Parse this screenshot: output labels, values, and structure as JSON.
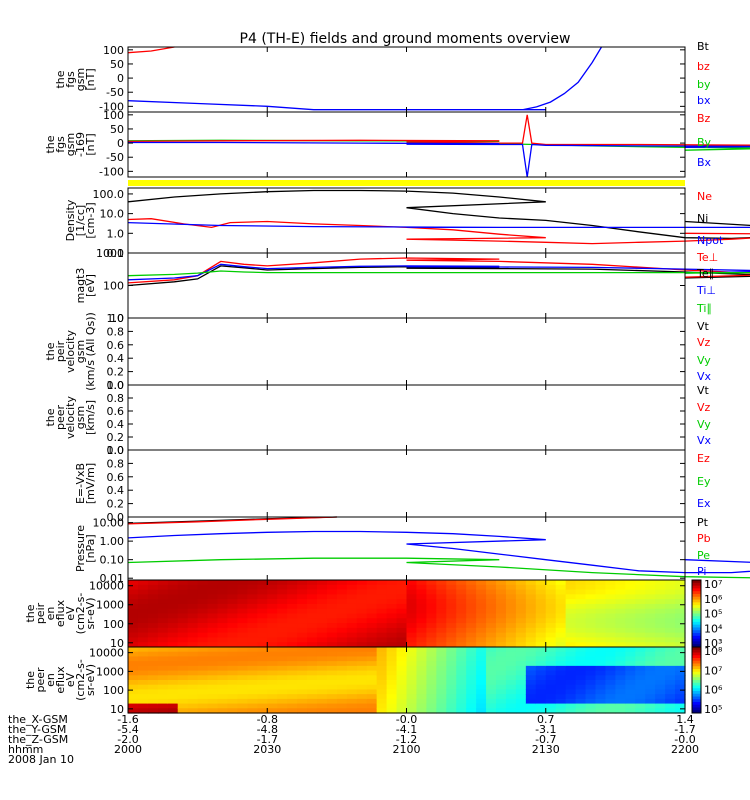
{
  "title": "P4 (TH-E) fields and ground moments overview",
  "footer": {
    "rows": [
      {
        "label": "the_X-GSM",
        "values": [
          "-1.6",
          "-0.8",
          "-0.0",
          "0.7",
          "1.4"
        ]
      },
      {
        "label": "the_Y-GSM",
        "values": [
          "-5.4",
          "-4.8",
          "-4.1",
          "-3.1",
          "-1.7"
        ]
      },
      {
        "label": "the_Z-GSM",
        "values": [
          "-2.0",
          "-1.7",
          "-1.2",
          "-0.7",
          "-0.0"
        ]
      },
      {
        "label": "hhmm",
        "values": [
          "2000",
          "2030",
          "2100",
          "2130",
          "2200"
        ]
      }
    ],
    "date": "2008 Jan 10"
  },
  "colors": {
    "black": "#000000",
    "red": "#ff0000",
    "green": "#00cc00",
    "blue": "#0000ff",
    "yellow": "#ffff00"
  },
  "chart_data": [
    {
      "id": "fgs",
      "type": "line",
      "ylabel_lines": [
        "the",
        "fgs",
        "gsm",
        "[nT]"
      ],
      "ylim": [
        -120,
        110
      ],
      "yticks": [
        {
          "v": 100,
          "t": "100"
        },
        {
          "v": 50,
          "t": "50"
        },
        {
          "v": 0,
          "t": "0"
        },
        {
          "v": -50,
          "t": "-50"
        },
        {
          "v": -100,
          "t": "-100"
        }
      ],
      "legend": [
        {
          "t": "Bt",
          "c": "black"
        },
        {
          "t": "bz",
          "c": "red"
        },
        {
          "t": "by",
          "c": "green"
        },
        {
          "t": "bx",
          "c": "blue"
        }
      ],
      "series": [
        {
          "c": "red",
          "x": [
            2000,
            2005,
            2010
          ],
          "y": [
            90,
            96,
            110
          ]
        },
        {
          "c": "blue",
          "x": [
            2000,
            2015,
            2030,
            2040,
            2060,
            2090,
            2120,
            2125,
            2128,
            2131,
            2134,
            2137,
            2140,
            2142
          ],
          "y": [
            -80,
            -90,
            -100,
            -112,
            -112,
            -112,
            -112,
            -112,
            -102,
            -85,
            -55,
            -15,
            55,
            110
          ]
        }
      ]
    },
    {
      "id": "fgs_169",
      "type": "line",
      "ylabel_lines": [
        "the",
        "fgs",
        "gsm",
        "-169",
        "[nT]"
      ],
      "ylim": [
        -120,
        110
      ],
      "yticks": [
        {
          "v": 100,
          "t": "100"
        },
        {
          "v": 50,
          "t": "50"
        },
        {
          "v": 0,
          "t": "0"
        },
        {
          "v": -50,
          "t": "-50"
        },
        {
          "v": -100,
          "t": "-100"
        }
      ],
      "legend": [
        {
          "t": "Bz",
          "c": "red"
        },
        {
          "t": "By",
          "c": "green"
        },
        {
          "t": "Bx",
          "c": "blue"
        }
      ],
      "series": [
        {
          "c": "green",
          "x": [
            2000,
            2020,
            2050,
            2080,
            2100,
            2120,
            2140,
            2160,
            2180,
            2200
          ],
          "y": [
            8,
            10,
            8,
            6,
            2,
            -2,
            -10,
            -15,
            -18,
            -25
          ]
        },
        {
          "c": "red",
          "x": [
            2000,
            2020,
            2050,
            2080,
            2100,
            2120,
            2125,
            2126,
            2127,
            2130,
            2150,
            2180,
            2200
          ],
          "y": [
            6,
            8,
            10,
            8,
            4,
            0,
            0,
            100,
            0,
            -5,
            -5,
            -8,
            -10
          ]
        },
        {
          "c": "blue",
          "x": [
            2000,
            2020,
            2050,
            2080,
            2100,
            2120,
            2125,
            2126,
            2127,
            2130,
            2150,
            2180,
            2200
          ],
          "y": [
            2,
            2,
            0,
            -2,
            -4,
            -5,
            -5,
            -120,
            -5,
            -8,
            -10,
            -12,
            -15
          ]
        }
      ]
    },
    {
      "id": "density",
      "type": "line",
      "log": true,
      "ylabel_lines": [
        "Density",
        "[1/cc]",
        "[cm-3]"
      ],
      "ylim": [
        0.1,
        200
      ],
      "yticks": [
        {
          "v": 100,
          "t": "100.0"
        },
        {
          "v": 10,
          "t": "10.0"
        },
        {
          "v": 1,
          "t": "1.0"
        },
        {
          "v": 0.1,
          "t": "0.1"
        }
      ],
      "legend": [
        {
          "t": "Ne",
          "c": "red"
        },
        {
          "t": "Ni",
          "c": "black"
        },
        {
          "t": "Npot",
          "c": "blue"
        }
      ],
      "series": [
        {
          "c": "black",
          "x": [
            2000,
            2010,
            2020,
            2030,
            2040,
            2050,
            2060,
            2070,
            2080,
            2090,
            2100,
            2110,
            2120,
            2130,
            2140,
            2150,
            2160,
            2170,
            2180,
            2190,
            2200
          ],
          "y": [
            40,
            70,
            100,
            130,
            150,
            150,
            140,
            110,
            70,
            40,
            20,
            10,
            6,
            4.5,
            2.5,
            1.2,
            0.6,
            0.55,
            0.7,
            1.5,
            4
          ]
        },
        {
          "c": "red",
          "x": [
            2000,
            2005,
            2012,
            2018,
            2022,
            2030,
            2040,
            2050,
            2060,
            2070,
            2080,
            2090,
            2100,
            2110,
            2120,
            2130,
            2140,
            2150,
            2160,
            2170,
            2180,
            2190,
            2200
          ],
          "y": [
            5,
            5.5,
            3,
            2,
            3.5,
            4,
            3,
            2.5,
            2,
            1.5,
            0.9,
            0.6,
            0.5,
            0.45,
            0.4,
            0.35,
            0.3,
            0.35,
            0.4,
            0.5,
            0.7,
            0.9,
            1
          ]
        },
        {
          "c": "blue",
          "x": [
            2000,
            2020,
            2040,
            2060,
            2080,
            2100,
            2120,
            2140,
            2160,
            2180,
            2200
          ],
          "y": [
            3.5,
            2.5,
            2.2,
            2.1,
            2.0,
            2.0,
            2.0,
            2.0,
            2.0,
            2.0,
            2.0
          ]
        }
      ]
    },
    {
      "id": "temp",
      "type": "line",
      "log": true,
      "ylabel_lines": [
        "magt3",
        "[eV]"
      ],
      "ylim": [
        10,
        1000
      ],
      "yticks": [
        {
          "v": 1000,
          "t": "1000"
        },
        {
          "v": 100,
          "t": "100"
        },
        {
          "v": 10,
          "t": "10"
        }
      ],
      "legend": [
        {
          "t": "Te⊥",
          "c": "red"
        },
        {
          "t": "Te∥",
          "c": "black"
        },
        {
          "t": "Ti⊥",
          "c": "blue"
        },
        {
          "t": "Ti∥",
          "c": "green"
        }
      ],
      "series": [
        {
          "c": "black",
          "x": [
            2000,
            2010,
            2015,
            2020,
            2025,
            2030,
            2040,
            2050,
            2060,
            2080,
            2100,
            2120,
            2140,
            2160,
            2180,
            2200
          ],
          "y": [
            100,
            130,
            160,
            400,
            350,
            300,
            330,
            360,
            380,
            360,
            340,
            330,
            320,
            260,
            200,
            170
          ]
        },
        {
          "c": "red",
          "x": [
            2000,
            2010,
            2015,
            2020,
            2025,
            2030,
            2040,
            2050,
            2060,
            2080,
            2100,
            2120,
            2140,
            2160,
            2180,
            2200
          ],
          "y": [
            120,
            150,
            200,
            550,
            450,
            400,
            500,
            650,
            700,
            650,
            600,
            550,
            450,
            300,
            220,
            180
          ]
        },
        {
          "c": "blue",
          "x": [
            2000,
            2010,
            2015,
            2020,
            2025,
            2030,
            2040,
            2050,
            2060,
            2080,
            2100,
            2120,
            2140,
            2160,
            2180,
            2200
          ],
          "y": [
            150,
            170,
            200,
            450,
            380,
            330,
            360,
            390,
            400,
            390,
            380,
            370,
            360,
            320,
            280,
            240
          ]
        },
        {
          "c": "green",
          "x": [
            2000,
            2010,
            2015,
            2020,
            2025,
            2030,
            2040,
            2060,
            2080,
            2100,
            2120,
            2140,
            2160,
            2180,
            2200
          ],
          "y": [
            200,
            220,
            240,
            280,
            260,
            250,
            250,
            250,
            250,
            250,
            250,
            250,
            250,
            250,
            240
          ]
        }
      ]
    },
    {
      "id": "peir_vel",
      "type": "line",
      "ylabel_lines": [
        "the",
        "peir",
        "velocity",
        "gsm",
        "(km/s (All Qs))"
      ],
      "ylim": [
        0,
        1
      ],
      "yticks": [
        {
          "v": 1,
          "t": "1.0"
        },
        {
          "v": 0.8,
          "t": "0.8"
        },
        {
          "v": 0.6,
          "t": "0.6"
        },
        {
          "v": 0.4,
          "t": "0.4"
        },
        {
          "v": 0.2,
          "t": "0.2"
        },
        {
          "v": 0,
          "t": "0.0"
        }
      ],
      "legend": [
        {
          "t": "Vt",
          "c": "black"
        },
        {
          "t": "Vz",
          "c": "red"
        },
        {
          "t": "Vy",
          "c": "green"
        },
        {
          "t": "Vx",
          "c": "blue"
        }
      ],
      "series": []
    },
    {
      "id": "peer_vel",
      "type": "line",
      "ylabel_lines": [
        "the",
        "peer",
        "velocity",
        "gsm",
        "[km/s]"
      ],
      "ylim": [
        0,
        1
      ],
      "yticks": [
        {
          "v": 1,
          "t": "1.0"
        },
        {
          "v": 0.8,
          "t": "0.8"
        },
        {
          "v": 0.6,
          "t": "0.6"
        },
        {
          "v": 0.4,
          "t": "0.4"
        },
        {
          "v": 0.2,
          "t": "0.2"
        },
        {
          "v": 0,
          "t": "0.0"
        }
      ],
      "legend": [
        {
          "t": "Vt",
          "c": "black"
        },
        {
          "t": "Vz",
          "c": "red"
        },
        {
          "t": "Vy",
          "c": "green"
        },
        {
          "t": "Vx",
          "c": "blue"
        }
      ],
      "series": []
    },
    {
      "id": "efield",
      "type": "line",
      "ylabel_lines": [
        "E=-VxB",
        "[mV/m]"
      ],
      "ylim": [
        0,
        1
      ],
      "yticks": [
        {
          "v": 1,
          "t": "1.0"
        },
        {
          "v": 0.8,
          "t": "0.8"
        },
        {
          "v": 0.6,
          "t": "0.6"
        },
        {
          "v": 0.4,
          "t": "0.4"
        },
        {
          "v": 0.2,
          "t": "0.2"
        },
        {
          "v": 0,
          "t": "0.0"
        }
      ],
      "legend": [
        {
          "t": "Ez",
          "c": "red"
        },
        {
          "t": "Ey",
          "c": "green"
        },
        {
          "t": "Ex",
          "c": "blue"
        }
      ],
      "series": []
    },
    {
      "id": "pressure",
      "type": "line",
      "log": true,
      "ylabel_lines": [
        "Pressure",
        "[nPa]"
      ],
      "ylim": [
        0.008,
        20
      ],
      "yticks": [
        {
          "v": 10,
          "t": "10.00"
        },
        {
          "v": 1,
          "t": "1.00"
        },
        {
          "v": 0.1,
          "t": "0.10"
        },
        {
          "v": 0.01,
          "t": "0.01"
        }
      ],
      "legend": [
        {
          "t": "Pt",
          "c": "black"
        },
        {
          "t": "Pb",
          "c": "red"
        },
        {
          "t": "Pe",
          "c": "green"
        },
        {
          "t": "Pi",
          "c": "blue"
        }
      ],
      "series": [
        {
          "c": "black",
          "x": [
            2000,
            2015,
            2030,
            2045
          ],
          "y": [
            9,
            12,
            16,
            20
          ]
        },
        {
          "c": "red",
          "x": [
            2000,
            2015,
            2030,
            2045
          ],
          "y": [
            8.5,
            11,
            15,
            20
          ]
        },
        {
          "c": "blue",
          "x": [
            2000,
            2010,
            2020,
            2030,
            2040,
            2050,
            2060,
            2070,
            2080,
            2090,
            2100,
            2110,
            2120,
            2130,
            2140,
            2150,
            2160,
            2170,
            2180,
            2190,
            2200
          ],
          "y": [
            1.5,
            2,
            2.5,
            3,
            3.3,
            3.3,
            3,
            2.5,
            1.8,
            1.2,
            0.7,
            0.4,
            0.2,
            0.1,
            0.05,
            0.025,
            0.02,
            0.02,
            0.03,
            0.05,
            0.1
          ]
        },
        {
          "c": "green",
          "x": [
            2000,
            2020,
            2040,
            2060,
            2080,
            2100,
            2120,
            2140,
            2160,
            2180,
            2200
          ],
          "y": [
            0.07,
            0.1,
            0.12,
            0.12,
            0.1,
            0.07,
            0.04,
            0.02,
            0.012,
            0.01,
            0.012
          ]
        }
      ]
    },
    {
      "id": "peir_spec",
      "type": "heatmap",
      "ylabel_lines": [
        "the",
        "peir",
        "en",
        "eflux",
        "eV",
        "(cm2-s-",
        "sr-eV)"
      ],
      "yticks": [
        {
          "v": 10000,
          "t": "10000"
        },
        {
          "v": 1000,
          "t": "1000"
        },
        {
          "v": 100,
          "t": "100"
        },
        {
          "v": 10,
          "t": "10"
        }
      ],
      "ylim": [
        6,
        20000
      ],
      "colorbar": {
        "min_exp": 3,
        "max_exp": 7,
        "labels": [
          "10⁷",
          "10⁶",
          "10⁵",
          "10⁴",
          "10³"
        ]
      }
    },
    {
      "id": "peer_spec",
      "type": "heatmap",
      "ylabel_lines": [
        "the",
        "peer",
        "en",
        "eflux",
        "eV",
        "(cm2-s-",
        "sr-eV)"
      ],
      "yticks": [
        {
          "v": 10000,
          "t": "10000"
        },
        {
          "v": 1000,
          "t": "1000"
        },
        {
          "v": 100,
          "t": "100"
        },
        {
          "v": 10,
          "t": "10"
        }
      ],
      "ylim": [
        6,
        20000
      ],
      "colorbar": {
        "min_exp": 5,
        "max_exp": 8,
        "labels": [
          "10⁸",
          "10⁷",
          "10⁶",
          "10⁵"
        ]
      }
    }
  ]
}
